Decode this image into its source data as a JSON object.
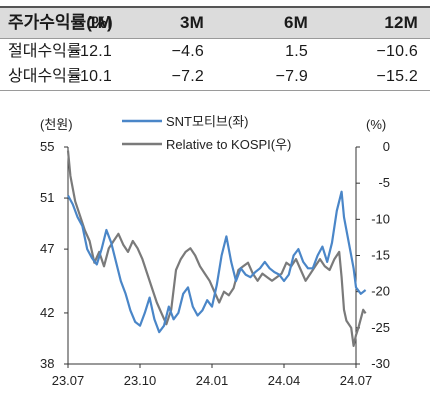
{
  "table": {
    "header": [
      "주가수익률(%)",
      "1M",
      "3M",
      "6M",
      "12M"
    ],
    "rows": [
      {
        "label": "절대수익률",
        "values": [
          "−12.1",
          "−4.6",
          "1.5",
          "−10.6"
        ]
      },
      {
        "label": "상대수익률",
        "values": [
          "−10.1",
          "−7.2",
          "−7.9",
          "−15.2"
        ]
      }
    ]
  },
  "chart_data": {
    "type": "line",
    "left_unit": "(천원)",
    "right_unit": "(%)",
    "x_ticks": [
      "23.07",
      "23.10",
      "24.01",
      "24.04",
      "24.07"
    ],
    "x_tick_months": [
      0,
      3,
      6,
      9,
      12
    ],
    "left_ticks": [
      "55",
      "51",
      "47",
      "42",
      "38"
    ],
    "left_tick_values": [
      55,
      51,
      47,
      42,
      38
    ],
    "right_ticks": [
      "0",
      "-5",
      "-10",
      "-15",
      "-20",
      "-25",
      "-30"
    ],
    "right_tick_values": [
      0,
      -5,
      -10,
      -15,
      -20,
      -25,
      -30
    ],
    "ylim_left": [
      38,
      55
    ],
    "ylim_right": [
      -30,
      0
    ],
    "grid": false,
    "legend_position": "top",
    "series": [
      {
        "name": "SNT모티브(좌)",
        "axis": "left",
        "color": "#4a86c8",
        "points": [
          [
            0,
            51.2
          ],
          [
            0.2,
            50.5
          ],
          [
            0.4,
            49.5
          ],
          [
            0.6,
            48.8
          ],
          [
            0.8,
            47.0
          ],
          [
            1.0,
            46.3
          ],
          [
            1.2,
            45.8
          ],
          [
            1.4,
            47.0
          ],
          [
            1.6,
            48.5
          ],
          [
            1.8,
            47.5
          ],
          [
            2.0,
            46.0
          ],
          [
            2.2,
            44.5
          ],
          [
            2.4,
            43.5
          ],
          [
            2.6,
            42.2
          ],
          [
            2.8,
            41.3
          ],
          [
            3.0,
            41.0
          ],
          [
            3.2,
            42.0
          ],
          [
            3.4,
            43.2
          ],
          [
            3.6,
            41.5
          ],
          [
            3.8,
            40.5
          ],
          [
            4.0,
            41.0
          ],
          [
            4.2,
            42.5
          ],
          [
            4.4,
            41.5
          ],
          [
            4.6,
            42.0
          ],
          [
            4.8,
            43.5
          ],
          [
            5.0,
            44.0
          ],
          [
            5.2,
            42.5
          ],
          [
            5.4,
            41.8
          ],
          [
            5.6,
            42.2
          ],
          [
            5.8,
            43.0
          ],
          [
            6.0,
            42.5
          ],
          [
            6.2,
            44.2
          ],
          [
            6.4,
            46.5
          ],
          [
            6.6,
            48.0
          ],
          [
            6.8,
            46.0
          ],
          [
            7.0,
            44.5
          ],
          [
            7.2,
            45.5
          ],
          [
            7.4,
            45.0
          ],
          [
            7.6,
            44.8
          ],
          [
            7.8,
            45.2
          ],
          [
            8.0,
            45.5
          ],
          [
            8.2,
            46.0
          ],
          [
            8.4,
            45.5
          ],
          [
            8.6,
            45.2
          ],
          [
            8.8,
            45.0
          ],
          [
            9.0,
            44.5
          ],
          [
            9.2,
            45.0
          ],
          [
            9.4,
            46.5
          ],
          [
            9.6,
            47.0
          ],
          [
            9.8,
            46.0
          ],
          [
            10.0,
            45.5
          ],
          [
            10.2,
            45.5
          ],
          [
            10.4,
            46.5
          ],
          [
            10.6,
            47.2
          ],
          [
            10.8,
            46.0
          ],
          [
            11.0,
            47.5
          ],
          [
            11.2,
            50.0
          ],
          [
            11.4,
            51.5
          ],
          [
            11.5,
            49.5
          ],
          [
            11.7,
            47.5
          ],
          [
            11.9,
            45.5
          ],
          [
            12.0,
            44.0
          ],
          [
            12.2,
            43.5
          ],
          [
            12.4,
            43.8
          ]
        ]
      },
      {
        "name": "Relative to KOSPI(우)",
        "axis": "right",
        "color": "#7a7a7a",
        "points": [
          [
            0,
            -0.5
          ],
          [
            0.1,
            -4.0
          ],
          [
            0.3,
            -7.5
          ],
          [
            0.5,
            -9.5
          ],
          [
            0.7,
            -11.5
          ],
          [
            0.9,
            -13.0
          ],
          [
            1.1,
            -16.0
          ],
          [
            1.3,
            -14.5
          ],
          [
            1.5,
            -16.5
          ],
          [
            1.7,
            -14.0
          ],
          [
            1.9,
            -13.0
          ],
          [
            2.1,
            -12.0
          ],
          [
            2.3,
            -13.5
          ],
          [
            2.5,
            -14.5
          ],
          [
            2.7,
            -13.0
          ],
          [
            2.9,
            -14.0
          ],
          [
            3.1,
            -15.5
          ],
          [
            3.3,
            -17.5
          ],
          [
            3.5,
            -19.5
          ],
          [
            3.7,
            -21.5
          ],
          [
            3.9,
            -23.0
          ],
          [
            4.1,
            -24.5
          ],
          [
            4.3,
            -22.5
          ],
          [
            4.5,
            -17.0
          ],
          [
            4.7,
            -15.5
          ],
          [
            4.9,
            -14.5
          ],
          [
            5.1,
            -14.0
          ],
          [
            5.3,
            -15.0
          ],
          [
            5.5,
            -16.5
          ],
          [
            5.7,
            -17.5
          ],
          [
            5.9,
            -18.5
          ],
          [
            6.1,
            -20.0
          ],
          [
            6.3,
            -21.5
          ],
          [
            6.5,
            -20.0
          ],
          [
            6.7,
            -20.5
          ],
          [
            6.9,
            -19.5
          ],
          [
            7.1,
            -17.0
          ],
          [
            7.3,
            -16.5
          ],
          [
            7.5,
            -16.0
          ],
          [
            7.7,
            -17.5
          ],
          [
            7.9,
            -18.5
          ],
          [
            8.1,
            -17.5
          ],
          [
            8.3,
            -18.0
          ],
          [
            8.5,
            -18.5
          ],
          [
            8.7,
            -18.0
          ],
          [
            8.9,
            -17.5
          ],
          [
            9.1,
            -16.0
          ],
          [
            9.3,
            -16.5
          ],
          [
            9.5,
            -15.5
          ],
          [
            9.7,
            -17.0
          ],
          [
            9.9,
            -18.5
          ],
          [
            10.1,
            -17.5
          ],
          [
            10.3,
            -16.5
          ],
          [
            10.5,
            -15.5
          ],
          [
            10.7,
            -16.5
          ],
          [
            10.9,
            -17.0
          ],
          [
            11.1,
            -15.5
          ],
          [
            11.3,
            -14.5
          ],
          [
            11.4,
            -18.0
          ],
          [
            11.5,
            -22.5
          ],
          [
            11.6,
            -24.0
          ],
          [
            11.8,
            -25.0
          ],
          [
            11.9,
            -27.5
          ],
          [
            12.0,
            -26.0
          ],
          [
            12.1,
            -25.0
          ],
          [
            12.3,
            -22.5
          ],
          [
            12.4,
            -23.0
          ]
        ]
      }
    ]
  }
}
